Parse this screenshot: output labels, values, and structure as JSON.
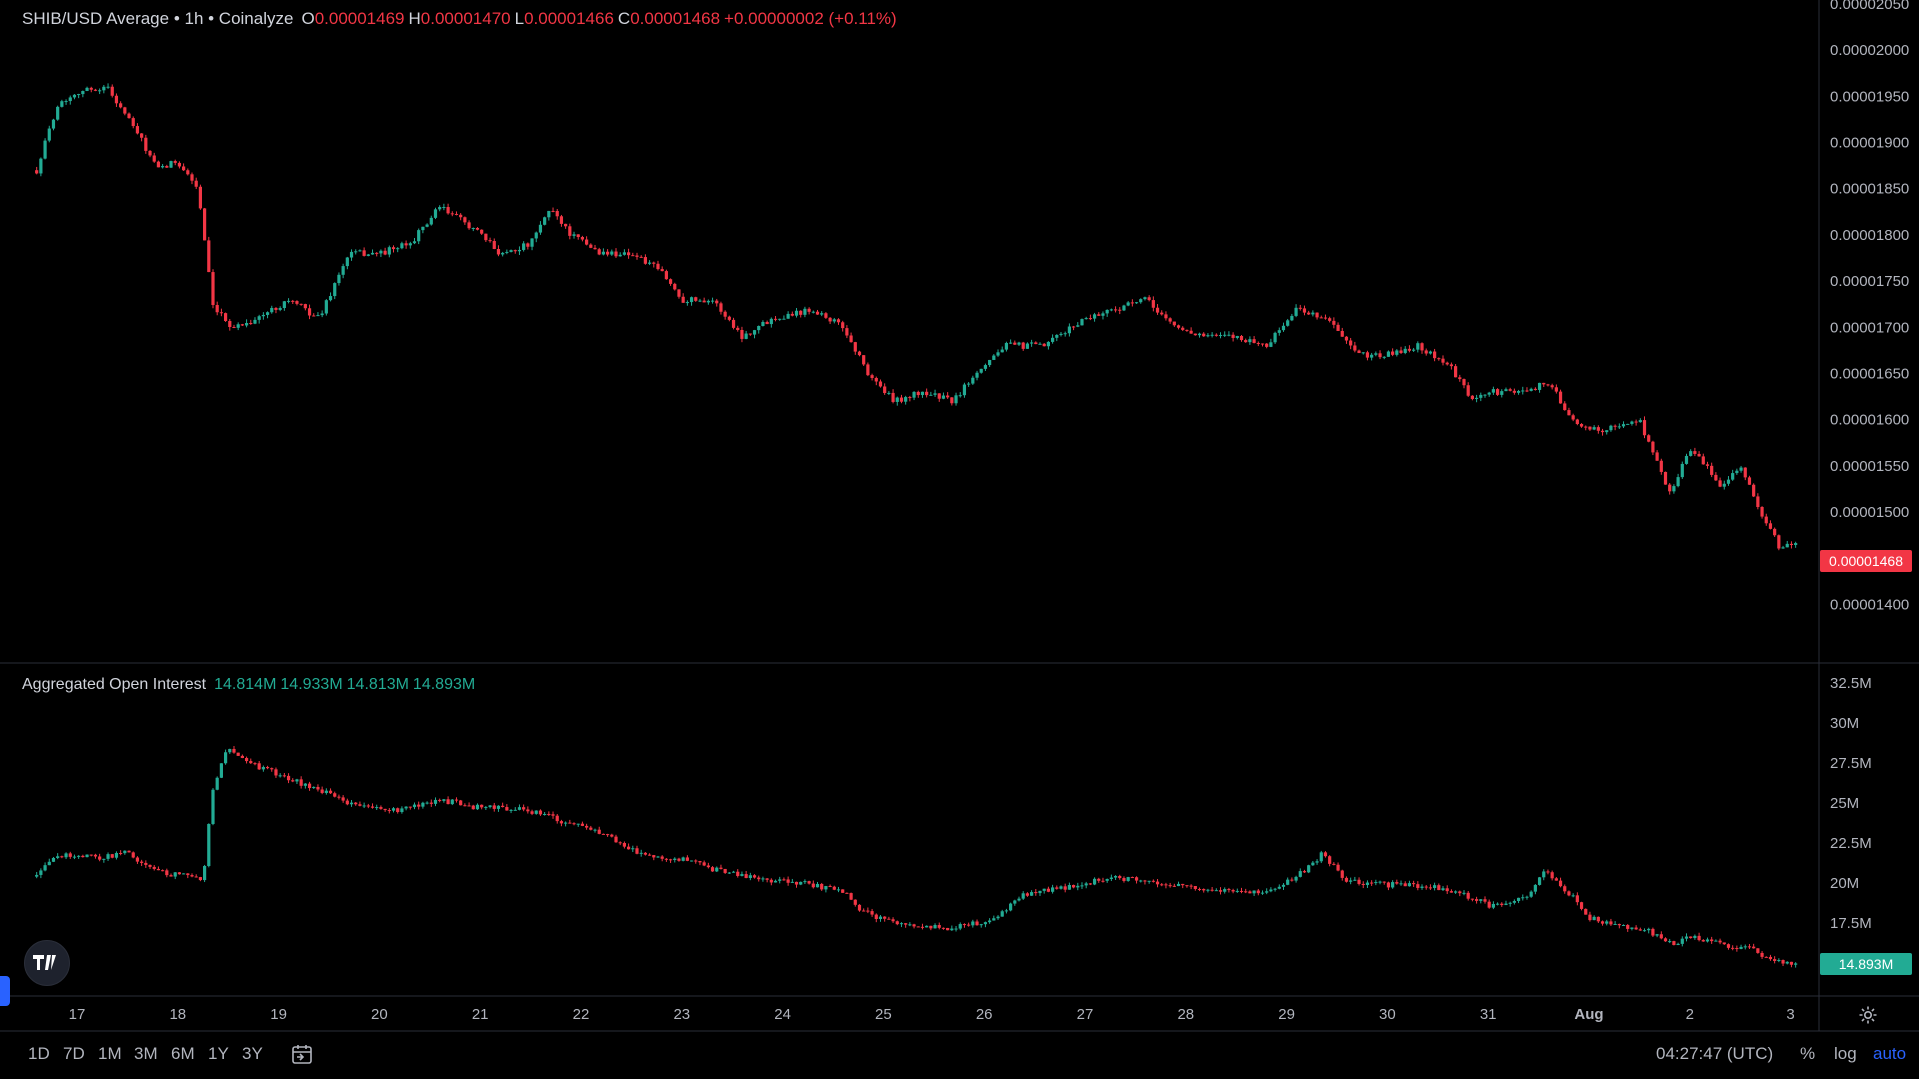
{
  "legend": {
    "symbol": "SHIB/USD Average • 1h • Coinalyze",
    "o_label": "O",
    "o": "0.00001469",
    "h_label": "H",
    "h": "0.00001470",
    "l_label": "L",
    "l": "0.00001466",
    "c_label": "C",
    "c": "0.00001468",
    "change": "+0.00000002 (+0.11%)"
  },
  "oi_legend": {
    "title": "Aggregated Open Interest",
    "v1": "14.814M",
    "v2": "14.933M",
    "v3": "14.813M",
    "v4": "14.893M"
  },
  "price_tag": "0.00001468",
  "oi_tag": "14.893M",
  "bottom": {
    "ranges": [
      "1D",
      "7D",
      "1M",
      "3M",
      "6M",
      "1Y",
      "3Y"
    ],
    "clock": "04:27:47 (UTC)",
    "percent": "%",
    "log": "log",
    "auto": "auto"
  },
  "colors": {
    "up": "#22ab94",
    "down": "#f23645",
    "grid": "#1e222d",
    "text": "#b2b5be"
  },
  "chart_data": [
    {
      "type": "candlestick",
      "title": "SHIB/USD Average • 1h • Coinalyze",
      "ylim": [
        1.38e-05,
        2.05e-05
      ],
      "y_ticks": [
        "0.00002050",
        "0.00002000",
        "0.00001950",
        "0.00001900",
        "0.00001850",
        "0.00001800",
        "0.00001750",
        "0.00001700",
        "0.00001650",
        "0.00001600",
        "0.00001550",
        "0.00001500",
        "0.00001450",
        "0.00001400"
      ],
      "x_ticks": [
        "17",
        "18",
        "19",
        "20",
        "21",
        "22",
        "23",
        "24",
        "25",
        "26",
        "27",
        "28",
        "29",
        "30",
        "31",
        "Aug",
        "2",
        "3"
      ],
      "close_path": [
        [
          16.6,
          1.87e-05
        ],
        [
          16.8,
          1.94e-05
        ],
        [
          17.0,
          1.955e-05
        ],
        [
          17.3,
          1.96e-05
        ],
        [
          17.6,
          1.91e-05
        ],
        [
          17.8,
          1.87e-05
        ],
        [
          18.0,
          1.88e-05
        ],
        [
          18.2,
          1.85e-05
        ],
        [
          18.35,
          1.72e-05
        ],
        [
          18.55,
          1.7e-05
        ],
        [
          18.8,
          1.71e-05
        ],
        [
          19.1,
          1.73e-05
        ],
        [
          19.4,
          1.71e-05
        ],
        [
          19.7,
          1.78e-05
        ],
        [
          20.0,
          1.78e-05
        ],
        [
          20.3,
          1.79e-05
        ],
        [
          20.6,
          1.83e-05
        ],
        [
          20.9,
          1.81e-05
        ],
        [
          21.2,
          1.78e-05
        ],
        [
          21.5,
          1.79e-05
        ],
        [
          21.7,
          1.83e-05
        ],
        [
          21.9,
          1.8e-05
        ],
        [
          22.2,
          1.78e-05
        ],
        [
          22.5,
          1.78e-05
        ],
        [
          22.8,
          1.76e-05
        ],
        [
          23.0,
          1.73e-05
        ],
        [
          23.3,
          1.73e-05
        ],
        [
          23.6,
          1.69e-05
        ],
        [
          23.9,
          1.71e-05
        ],
        [
          24.3,
          1.72e-05
        ],
        [
          24.6,
          1.7e-05
        ],
        [
          24.85,
          1.65e-05
        ],
        [
          25.1,
          1.62e-05
        ],
        [
          25.4,
          1.63e-05
        ],
        [
          25.7,
          1.62e-05
        ],
        [
          25.9,
          1.65e-05
        ],
        [
          26.2,
          1.68e-05
        ],
        [
          26.6,
          1.68e-05
        ],
        [
          27.0,
          1.71e-05
        ],
        [
          27.3,
          1.72e-05
        ],
        [
          27.6,
          1.73e-05
        ],
        [
          27.9,
          1.7e-05
        ],
        [
          28.2,
          1.69e-05
        ],
        [
          28.5,
          1.69e-05
        ],
        [
          28.8,
          1.68e-05
        ],
        [
          29.1,
          1.72e-05
        ],
        [
          29.4,
          1.71e-05
        ],
        [
          29.7,
          1.67e-05
        ],
        [
          30.0,
          1.67e-05
        ],
        [
          30.3,
          1.68e-05
        ],
        [
          30.6,
          1.66e-05
        ],
        [
          30.85,
          1.62e-05
        ],
        [
          31.0,
          1.63e-05
        ],
        [
          31.3,
          1.63e-05
        ],
        [
          31.6,
          1.64e-05
        ],
        [
          31.9,
          1.59e-05
        ],
        [
          32.2,
          1.59e-05
        ],
        [
          32.5,
          1.6e-05
        ],
        [
          32.8,
          1.52e-05
        ],
        [
          33.0,
          1.57e-05
        ],
        [
          33.3,
          1.53e-05
        ],
        [
          33.5,
          1.55e-05
        ],
        [
          33.7,
          1.5e-05
        ],
        [
          33.9,
          1.46e-05
        ],
        [
          34.05,
          1.468e-05
        ]
      ]
    },
    {
      "type": "candlestick",
      "title": "Aggregated Open Interest",
      "ylim": [
        13000000,
        33000000
      ],
      "y_ticks": [
        "32.5M",
        "30M",
        "27.5M",
        "25M",
        "22.5M",
        "20M",
        "17.5M"
      ],
      "close_path": [
        [
          16.6,
          20400000
        ],
        [
          16.8,
          21800000
        ],
        [
          17.2,
          21600000
        ],
        [
          17.5,
          21900000
        ],
        [
          17.8,
          20700000
        ],
        [
          18.25,
          20300000
        ],
        [
          18.35,
          26000000
        ],
        [
          18.5,
          28500000
        ],
        [
          18.7,
          27500000
        ],
        [
          19.0,
          26800000
        ],
        [
          19.4,
          25800000
        ],
        [
          19.8,
          24800000
        ],
        [
          20.2,
          24500000
        ],
        [
          20.6,
          25200000
        ],
        [
          21.0,
          24700000
        ],
        [
          21.4,
          24700000
        ],
        [
          21.7,
          24100000
        ],
        [
          21.9,
          23700000
        ],
        [
          22.2,
          23200000
        ],
        [
          22.6,
          21800000
        ],
        [
          23.0,
          21500000
        ],
        [
          23.4,
          20700000
        ],
        [
          23.8,
          20200000
        ],
        [
          24.2,
          20000000
        ],
        [
          24.6,
          19500000
        ],
        [
          24.8,
          18200000
        ],
        [
          25.0,
          17700000
        ],
        [
          25.4,
          17300000
        ],
        [
          25.7,
          17200000
        ],
        [
          26.1,
          17700000
        ],
        [
          26.4,
          19300000
        ],
        [
          26.8,
          19700000
        ],
        [
          27.2,
          20300000
        ],
        [
          27.6,
          20200000
        ],
        [
          28.0,
          19700000
        ],
        [
          28.4,
          19500000
        ],
        [
          28.8,
          19500000
        ],
        [
          29.1,
          20400000
        ],
        [
          29.35,
          21800000
        ],
        [
          29.6,
          20100000
        ],
        [
          30.0,
          19900000
        ],
        [
          30.4,
          19800000
        ],
        [
          30.8,
          19200000
        ],
        [
          31.0,
          18600000
        ],
        [
          31.4,
          19100000
        ],
        [
          31.55,
          20800000
        ],
        [
          31.8,
          19400000
        ],
        [
          32.0,
          17800000
        ],
        [
          32.3,
          17300000
        ],
        [
          32.6,
          17000000
        ],
        [
          32.8,
          16200000
        ],
        [
          33.0,
          16600000
        ],
        [
          33.3,
          16200000
        ],
        [
          33.6,
          15900000
        ],
        [
          33.8,
          15200000
        ],
        [
          34.05,
          14893000
        ]
      ]
    }
  ]
}
